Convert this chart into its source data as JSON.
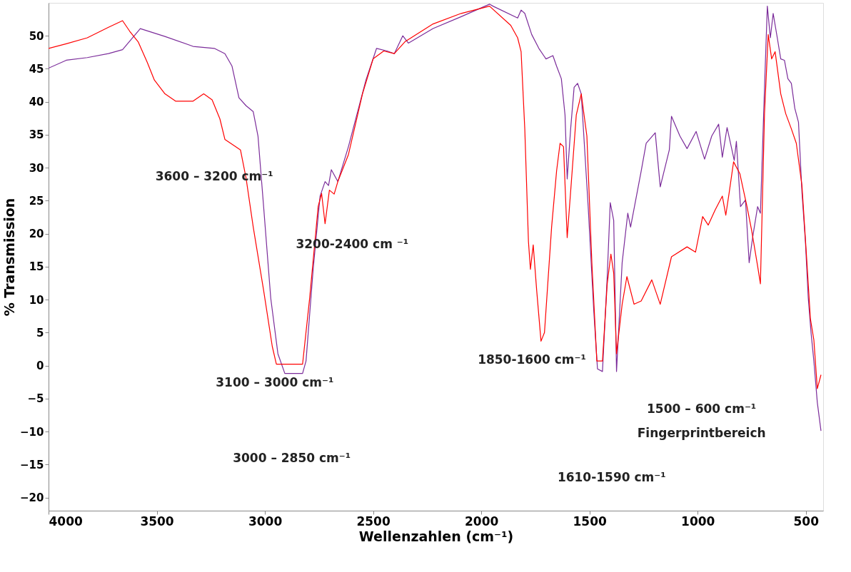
{
  "chart_data": {
    "type": "line",
    "xlabel": "Wellenzahlen (cm⁻¹)",
    "ylabel": "% Transmission",
    "xlim": [
      4000,
      420
    ],
    "ylim": [
      -22,
      55
    ],
    "xticks": [
      4000,
      3500,
      3000,
      2500,
      2000,
      1500,
      1000,
      500
    ],
    "yticks": [
      50,
      45,
      40,
      35,
      30,
      25,
      20,
      15,
      10,
      5,
      0,
      -5,
      -10,
      -15,
      -20
    ],
    "grid": false,
    "legend": false,
    "marker": "none",
    "line_style": "solid",
    "series": [
      {
        "color": "#7b2c9a",
        "x": [
          4000,
          3918,
          3821,
          3723,
          3658,
          3576,
          3462,
          3332,
          3234,
          3185,
          3152,
          3120,
          3087,
          3054,
          3032,
          3006,
          2973,
          2940,
          2908,
          2826,
          2810,
          2777,
          2745,
          2722,
          2706,
          2693,
          2663,
          2614,
          2533,
          2484,
          2435,
          2402,
          2363,
          2337,
          2223,
          2093,
          1962,
          1946,
          1832,
          1816,
          1799,
          1767,
          1734,
          1701,
          1669,
          1652,
          1630,
          1613,
          1603,
          1587,
          1571,
          1555,
          1538,
          1506,
          1480,
          1463,
          1440,
          1418,
          1404,
          1388,
          1375,
          1349,
          1323,
          1310,
          1261,
          1238,
          1196,
          1173,
          1131,
          1121,
          1082,
          1049,
          1007,
          968,
          935,
          903,
          886,
          864,
          831,
          821,
          802,
          779,
          762,
          746,
          723,
          710,
          691,
          678,
          664,
          651,
          632,
          616,
          599,
          583,
          567,
          551,
          534,
          518,
          502,
          489,
          476,
          463,
          447,
          430
        ],
        "values": [
          45.1,
          46.3,
          46.7,
          47.3,
          47.9,
          51.1,
          49.9,
          48.4,
          48.1,
          47.3,
          45.4,
          40.6,
          39.4,
          38.5,
          34.8,
          24.1,
          10.2,
          1.8,
          -1.2,
          -1.2,
          0.7,
          14.6,
          25.7,
          27.9,
          27.3,
          29.7,
          27.9,
          33.2,
          43.3,
          48.1,
          47.7,
          47.3,
          50,
          48.9,
          51.1,
          52.9,
          54.8,
          54.5,
          52.7,
          53.9,
          53.4,
          50.2,
          48.1,
          46.5,
          47,
          45.4,
          43.5,
          38,
          28.3,
          35.9,
          42.2,
          42.8,
          41.2,
          24.1,
          8.2,
          -0.5,
          -0.9,
          13.5,
          24.7,
          22,
          -0.9,
          15.6,
          23.1,
          21,
          29.5,
          33.7,
          35.3,
          27.1,
          32.7,
          37.8,
          34.8,
          32.9,
          35.5,
          31.3,
          34.8,
          36.6,
          31.6,
          36.1,
          31.1,
          34,
          24.1,
          25.1,
          15.6,
          19.4,
          24.1,
          23.1,
          42.2,
          54.5,
          49.7,
          53.4,
          49.7,
          46.5,
          46.3,
          43.5,
          42.8,
          39,
          36.9,
          26.3,
          18.8,
          10.3,
          5,
          0.7,
          -5.6,
          -9.9
        ]
      },
      {
        "color": "#ff0000",
        "x": [
          4000,
          3918,
          3821,
          3723,
          3658,
          3625,
          3586,
          3544,
          3511,
          3462,
          3413,
          3332,
          3283,
          3244,
          3208,
          3185,
          3136,
          3113,
          3087,
          3054,
          3006,
          2966,
          2947,
          2826,
          2793,
          2754,
          2738,
          2722,
          2702,
          2680,
          2663,
          2614,
          2549,
          2500,
          2451,
          2402,
          2353,
          2223,
          2093,
          1962,
          1864,
          1832,
          1816,
          1799,
          1782,
          1773,
          1760,
          1744,
          1724,
          1708,
          1675,
          1652,
          1636,
          1620,
          1603,
          1580,
          1561,
          1538,
          1512,
          1489,
          1466,
          1440,
          1418,
          1401,
          1388,
          1375,
          1349,
          1327,
          1294,
          1261,
          1212,
          1173,
          1121,
          1049,
          1010,
          977,
          951,
          919,
          886,
          870,
          854,
          834,
          805,
          772,
          750,
          723,
          710,
          691,
          674,
          658,
          642,
          616,
          593,
          567,
          544,
          518,
          495,
          479,
          463,
          447,
          430
        ],
        "values": [
          48.1,
          48.8,
          49.7,
          51.3,
          52.3,
          50.7,
          49.1,
          46,
          43.3,
          41.2,
          40.1,
          40.1,
          41.2,
          40.3,
          37.4,
          34.3,
          33.2,
          32.7,
          28.4,
          21,
          11.4,
          2.9,
          0.2,
          0.2,
          10.3,
          24.1,
          26.1,
          21.5,
          26.6,
          26,
          27.9,
          32,
          41.2,
          46.5,
          47.7,
          47.3,
          49.1,
          51.8,
          53.4,
          54.5,
          51.6,
          49.7,
          47.6,
          35.9,
          18.8,
          14.6,
          18.3,
          11.4,
          3.7,
          5,
          21,
          29.5,
          33.7,
          33.2,
          19.4,
          29.5,
          38,
          41.2,
          34.8,
          15.6,
          0.7,
          0.7,
          12.4,
          16.9,
          14,
          1.8,
          9.3,
          13.5,
          9.3,
          9.8,
          13,
          9.3,
          16.5,
          18,
          17.2,
          22.6,
          21.3,
          23.6,
          25.7,
          22.8,
          26.3,
          30.9,
          29.1,
          24.1,
          20.4,
          15.1,
          12.4,
          38.3,
          50.2,
          46.5,
          47.6,
          41.2,
          38.2,
          35.9,
          33.7,
          27.3,
          15.6,
          7.1,
          3.9,
          -3.5,
          -1.4
        ]
      }
    ],
    "annotations": [
      "3600 – 3200 cm⁻¹",
      "3200-2400 cm ⁻¹",
      "3100 – 3000 cm⁻¹",
      "3000 – 2850 cm⁻¹",
      "1850-1600 cm⁻¹",
      "1500 – 600 cm⁻¹",
      "Fingerprintbereich",
      "1610-1590 cm⁻¹"
    ]
  }
}
